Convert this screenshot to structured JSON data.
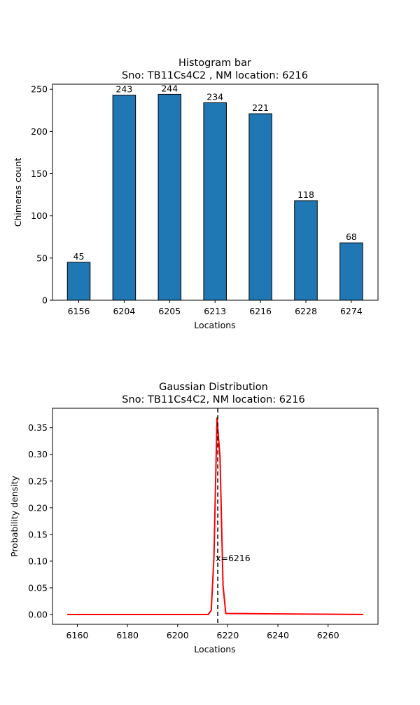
{
  "chart_data": [
    {
      "type": "bar",
      "title_line1": "Histogram bar",
      "title_line2": "Sno: TB11Cs4C2 , NM location: 6216",
      "xlabel": "Locations",
      "ylabel": "Chimeras count",
      "categories": [
        "6156",
        "6204",
        "6205",
        "6213",
        "6216",
        "6228",
        "6274"
      ],
      "values": [
        45,
        243,
        244,
        234,
        221,
        118,
        68
      ],
      "ylim": [
        0,
        256
      ],
      "yticks": [
        0,
        50,
        100,
        150,
        200,
        250
      ],
      "bar_color": "#1f77b4",
      "edge_color": "#000000"
    },
    {
      "type": "line",
      "title_line1": "Gaussian Distribution",
      "title_line2": "Sno: TB11Cs4C2, NM location: 6216",
      "xlabel": "Locations",
      "ylabel": "Probability density",
      "xlim": [
        6150.1,
        6279.9
      ],
      "ylim": [
        -0.0184,
        0.3864
      ],
      "xticks": [
        6160,
        6180,
        6200,
        6220,
        6240,
        6260
      ],
      "yticks": [
        0.0,
        0.05,
        0.1,
        0.15,
        0.2,
        0.25,
        0.3,
        0.35
      ],
      "ytick_labels": [
        "0.00",
        "0.05",
        "0.10",
        "0.15",
        "0.20",
        "0.25",
        "0.30",
        "0.35"
      ],
      "series": [
        {
          "name": "gaussian",
          "color": "#ff0000",
          "x": [
            6156,
            6212.2,
            6213.4,
            6214.5,
            6215.7,
            6216.9,
            6218.1,
            6219.2,
            6274
          ],
          "y": [
            0.0,
            0.0,
            0.008,
            0.11,
            0.368,
            0.295,
            0.055,
            0.002,
            0.0
          ]
        }
      ],
      "marker_line_x": 6216,
      "marker_line_color": "#000000",
      "annotation": {
        "text": "x=6216",
        "x": 6216,
        "y": 0.105
      }
    }
  ]
}
